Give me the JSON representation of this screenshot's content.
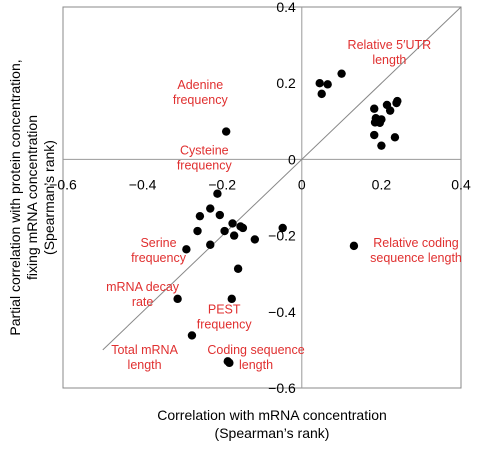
{
  "chart_data": {
    "type": "scatter",
    "xlabel": [
      "Correlation with mRNA concentration",
      "(Spearman’s rank)"
    ],
    "ylabel": [
      "Partial correlation with protein concentration,",
      "fixing mRNA concentration",
      "(Spearman’s rank)"
    ],
    "xlim": [
      -0.6,
      0.4
    ],
    "ylim": [
      -0.6,
      0.4
    ],
    "x_ticks": [
      -0.6,
      -0.4,
      -0.2,
      0,
      0.2,
      0.4
    ],
    "y_ticks": [
      0.4,
      0.2,
      0,
      -0.2,
      -0.4,
      -0.6
    ],
    "x_tick_labels": [
      "−0.6",
      "−0.4",
      "−0.2",
      "0",
      "0.2",
      "0.4"
    ],
    "y_tick_labels": [
      "0.4",
      "0.2",
      "0",
      "−0.2",
      "−0.4",
      "−0.6"
    ],
    "diagonal": {
      "x": [
        -0.5,
        0.4
      ],
      "y": [
        -0.5,
        0.4
      ]
    },
    "points": [
      {
        "x": 0.045,
        "y": 0.2
      },
      {
        "x": 0.065,
        "y": 0.197
      },
      {
        "x": 0.05,
        "y": 0.172
      },
      {
        "x": 0.1,
        "y": 0.225
      },
      {
        "x": 0.182,
        "y": 0.133
      },
      {
        "x": 0.2,
        "y": 0.105
      },
      {
        "x": 0.214,
        "y": 0.143
      },
      {
        "x": 0.238,
        "y": 0.148
      },
      {
        "x": 0.24,
        "y": 0.153
      },
      {
        "x": 0.222,
        "y": 0.128
      },
      {
        "x": 0.186,
        "y": 0.108
      },
      {
        "x": 0.184,
        "y": 0.097
      },
      {
        "x": 0.196,
        "y": 0.096
      },
      {
        "x": 0.182,
        "y": 0.064
      },
      {
        "x": 0.234,
        "y": 0.058
      },
      {
        "x": 0.2,
        "y": 0.036
      },
      {
        "x": -0.19,
        "y": 0.073
      },
      {
        "x": -0.212,
        "y": -0.09
      },
      {
        "x": -0.256,
        "y": -0.149
      },
      {
        "x": -0.23,
        "y": -0.129
      },
      {
        "x": -0.206,
        "y": -0.146
      },
      {
        "x": -0.174,
        "y": -0.168
      },
      {
        "x": -0.262,
        "y": -0.188
      },
      {
        "x": -0.23,
        "y": -0.224
      },
      {
        "x": -0.194,
        "y": -0.188
      },
      {
        "x": -0.154,
        "y": -0.176
      },
      {
        "x": -0.148,
        "y": -0.18
      },
      {
        "x": -0.17,
        "y": -0.2
      },
      {
        "x": -0.118,
        "y": -0.21
      },
      {
        "x": -0.048,
        "y": -0.18
      },
      {
        "x": -0.29,
        "y": -0.236
      },
      {
        "x": -0.16,
        "y": -0.287
      },
      {
        "x": -0.312,
        "y": -0.366
      },
      {
        "x": -0.176,
        "y": -0.366
      },
      {
        "x": -0.276,
        "y": -0.462
      },
      {
        "x": -0.186,
        "y": -0.53
      },
      {
        "x": -0.182,
        "y": -0.534
      },
      {
        "x": 0.131,
        "y": -0.227
      }
    ],
    "annotations": [
      {
        "lines": [
          "Relative 5′UTR",
          "length"
        ],
        "x": 0.22,
        "y": 0.29,
        "anchor": "middle"
      },
      {
        "lines": [
          "Adenine",
          "frequency"
        ],
        "x": -0.255,
        "y": 0.185,
        "anchor": "middle"
      },
      {
        "lines": [
          "Cysteine",
          "frequency"
        ],
        "x": -0.245,
        "y": 0.013,
        "anchor": "middle"
      },
      {
        "lines": [
          "Serine",
          "frequency"
        ],
        "x": -0.36,
        "y": -0.23,
        "anchor": "middle"
      },
      {
        "lines": [
          "mRNA decay",
          "rate"
        ],
        "x": -0.4,
        "y": -0.345,
        "anchor": "middle"
      },
      {
        "lines": [
          "PEST",
          "frequency"
        ],
        "x": -0.195,
        "y": -0.405,
        "anchor": "middle"
      },
      {
        "lines": [
          "Total mRNA",
          "length"
        ],
        "x": -0.395,
        "y": -0.511,
        "anchor": "middle"
      },
      {
        "lines": [
          "Coding sequence",
          "length"
        ],
        "x": -0.115,
        "y": -0.511,
        "anchor": "middle"
      },
      {
        "lines": [
          "Relative coding",
          "sequence length"
        ],
        "x": 0.287,
        "y": -0.23,
        "anchor": "middle"
      }
    ],
    "grid": false
  }
}
